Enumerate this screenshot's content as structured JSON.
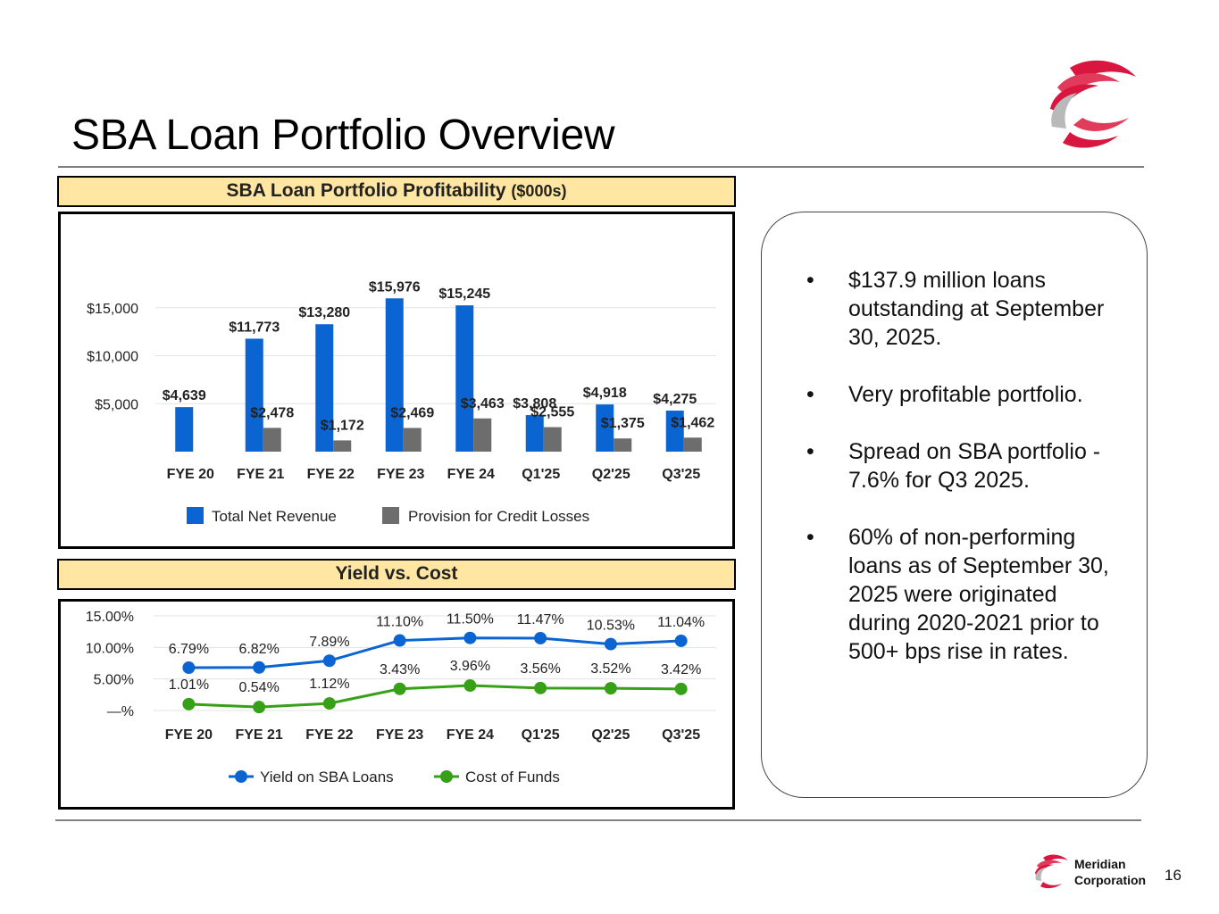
{
  "page": {
    "title": "SBA Loan Portfolio Overview",
    "page_number": "16",
    "company_name_line1": "Meridian",
    "company_name_line2": "Corporation"
  },
  "colors": {
    "revenue": "#0a64d2",
    "provision": "#6d6d6d",
    "yield": "#0a64d2",
    "cost": "#36a017",
    "banner": "#ffe6a2",
    "logo_red": "#d9163f"
  },
  "callout": {
    "bullets": [
      "$137.9 million loans outstanding at September 30, 2025.",
      "Very profitable portfolio.",
      "Spread on SBA portfolio - 7.6% for Q3 2025.",
      "60% of non-performing loans as of September 30, 2025 were originated during 2020-2021 prior to 500+ bps rise in rates."
    ]
  },
  "chart_data": [
    {
      "type": "bar",
      "banner_title": "SBA Loan Portfolio Profitability",
      "banner_unit": "($000s)",
      "categories": [
        "FYE 20",
        "FYE 21",
        "FYE 22",
        "FYE 23",
        "FYE 24",
        "Q1'25",
        "Q2'25",
        "Q3'25"
      ],
      "series": [
        {
          "name": "Total Net Revenue",
          "values": [
            4639,
            11773,
            13280,
            15976,
            15245,
            3808,
            4918,
            4275
          ],
          "labels": [
            "$4,639",
            "$11,773",
            "$13,280",
            "$15,976",
            "$15,245",
            "$3,808",
            "$4,918",
            "$4,275"
          ]
        },
        {
          "name": "Provision for Credit Losses",
          "values": [
            0,
            2478,
            1172,
            2469,
            3463,
            2555,
            1375,
            1462
          ],
          "labels": [
            "",
            "$2,478",
            "$1,172",
            "$2,469",
            "$3,463",
            "$2,555",
            "$1,375",
            "$1,462"
          ]
        }
      ],
      "yticks": [
        5000,
        10000,
        15000
      ],
      "ytick_labels": [
        "$5,000",
        "$10,000",
        "$15,000"
      ],
      "ylim": [
        0,
        20000
      ],
      "grid": true,
      "legend": "bottom"
    },
    {
      "type": "line",
      "banner_title": "Yield vs. Cost",
      "categories": [
        "FYE 20",
        "FYE 21",
        "FYE 22",
        "FYE 23",
        "FYE 24",
        "Q1'25",
        "Q2'25",
        "Q3'25"
      ],
      "series": [
        {
          "name": "Yield on SBA Loans",
          "values": [
            6.79,
            6.82,
            7.89,
            11.1,
            11.5,
            11.47,
            10.53,
            11.04
          ],
          "labels": [
            "6.79%",
            "6.82%",
            "7.89%",
            "11.10%",
            "11.50%",
            "11.47%",
            "10.53%",
            "11.04%"
          ]
        },
        {
          "name": "Cost of Funds",
          "values": [
            1.01,
            0.54,
            1.12,
            3.43,
            3.96,
            3.56,
            3.52,
            3.42
          ],
          "labels": [
            "1.01%",
            "0.54%",
            "1.12%",
            "3.43%",
            "3.96%",
            "3.56%",
            "3.52%",
            "3.42%"
          ]
        }
      ],
      "yticks": [
        0,
        5,
        10,
        15
      ],
      "ytick_labels": [
        "—%",
        "5.00%",
        "10.00%",
        "15.00%"
      ],
      "ylim": [
        0,
        15
      ],
      "grid": true,
      "legend": "bottom"
    }
  ]
}
